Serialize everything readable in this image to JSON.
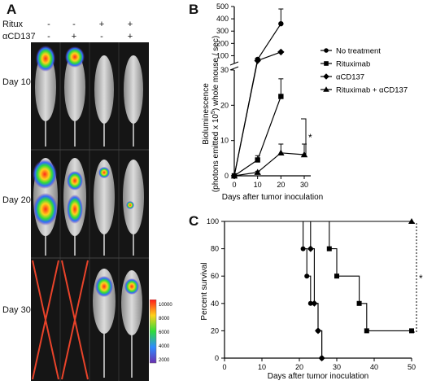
{
  "panel_a": {
    "letter": "A",
    "headers": [
      "Ritux",
      "αCD137"
    ],
    "groups": [
      {
        "ritux": "-",
        "acd137": "-"
      },
      {
        "ritux": "-",
        "acd137": "+"
      },
      {
        "ritux": "+",
        "acd137": "-"
      },
      {
        "ritux": "+",
        "acd137": "+"
      }
    ],
    "days": [
      "Day 10",
      "Day 20",
      "Day 30"
    ],
    "colorbar_ticks": [
      "10000",
      "8000",
      "6000",
      "4000",
      "2000"
    ],
    "colors": {
      "cross": "#e8432a",
      "panel_bg": "#151515"
    }
  },
  "chart_data": [
    {
      "panel": "B",
      "type": "line",
      "title": "",
      "xlabel": "Days after tumor inoculation",
      "ylabel_line1": "Bioluminescence",
      "ylabel_line2": "(photons emitted x 10",
      "ylabel_sup": "5",
      "ylabel_line3": ") whole mouse / sec)",
      "xlim": [
        0,
        30
      ],
      "ylim_lower": [
        0,
        30
      ],
      "ylim_upper": [
        50,
        500
      ],
      "broken_axis": true,
      "x_ticks": [
        "0",
        "10",
        "20",
        "30"
      ],
      "y_ticks_lower": [
        "0",
        "10",
        "20",
        "30"
      ],
      "y_ticks_upper": [
        "100",
        "200",
        "300",
        "400",
        "500"
      ],
      "legend_position": "right",
      "significance_label": "*",
      "series": [
        {
          "name": "No treatment",
          "marker": "circle",
          "x": [
            0,
            10,
            20
          ],
          "y": [
            0,
            70,
            360
          ],
          "err": [
            0,
            10,
            120
          ]
        },
        {
          "name": "Rituximab",
          "marker": "square",
          "x": [
            0,
            10,
            20
          ],
          "y": [
            0,
            4.5,
            22.5
          ],
          "err": [
            0,
            1.2,
            5
          ]
        },
        {
          "name": "αCD137",
          "marker": "diamond",
          "x": [
            0,
            10,
            20
          ],
          "y": [
            0,
            60,
            130
          ],
          "err": [
            0,
            8,
            0
          ]
        },
        {
          "name": "Rituximab + αCD137",
          "marker": "triangle",
          "x": [
            0,
            10,
            20,
            30
          ],
          "y": [
            0,
            1,
            6.5,
            6
          ],
          "err": [
            0,
            0.3,
            2.5,
            3
          ]
        }
      ]
    },
    {
      "panel": "C",
      "type": "line",
      "title": "",
      "xlabel": "Days after tumor inoculation",
      "ylabel": "Percent survival",
      "xlim": [
        0,
        50
      ],
      "ylim": [
        0,
        100
      ],
      "x_ticks": [
        "0",
        "10",
        "20",
        "30",
        "40",
        "50"
      ],
      "y_ticks": [
        "0",
        "20",
        "40",
        "60",
        "80",
        "100"
      ],
      "significance_label": "*",
      "series": [
        {
          "name": "No treatment",
          "marker": "circle",
          "steps": [
            [
              0,
              100
            ],
            [
              21,
              80
            ],
            [
              22,
              60
            ],
            [
              23,
              40
            ],
            [
              25,
              20
            ],
            [
              26,
              0
            ]
          ],
          "markers": [
            [
              21,
              80
            ],
            [
              22,
              60
            ],
            [
              23,
              40
            ],
            [
              25,
              20
            ],
            [
              26,
              0
            ]
          ]
        },
        {
          "name": "αCD137",
          "marker": "diamond",
          "steps": [
            [
              0,
              100
            ],
            [
              23,
              80
            ],
            [
              24,
              40
            ],
            [
              25,
              20
            ],
            [
              26,
              0
            ]
          ],
          "markers": [
            [
              23,
              80
            ],
            [
              24,
              40
            ],
            [
              25,
              20
            ],
            [
              26,
              0
            ]
          ]
        },
        {
          "name": "Rituximab",
          "marker": "square",
          "steps": [
            [
              0,
              100
            ],
            [
              28,
              80
            ],
            [
              30,
              60
            ],
            [
              36,
              40
            ],
            [
              38,
              20
            ],
            [
              50,
              20
            ]
          ],
          "markers": [
            [
              28,
              80
            ],
            [
              30,
              60
            ],
            [
              36,
              40
            ],
            [
              38,
              20
            ],
            [
              50,
              20
            ]
          ]
        },
        {
          "name": "Rituximab + αCD137",
          "marker": "triangle",
          "steps": [
            [
              0,
              100
            ],
            [
              50,
              100
            ]
          ],
          "markers": [
            [
              50,
              100
            ]
          ]
        }
      ]
    }
  ]
}
